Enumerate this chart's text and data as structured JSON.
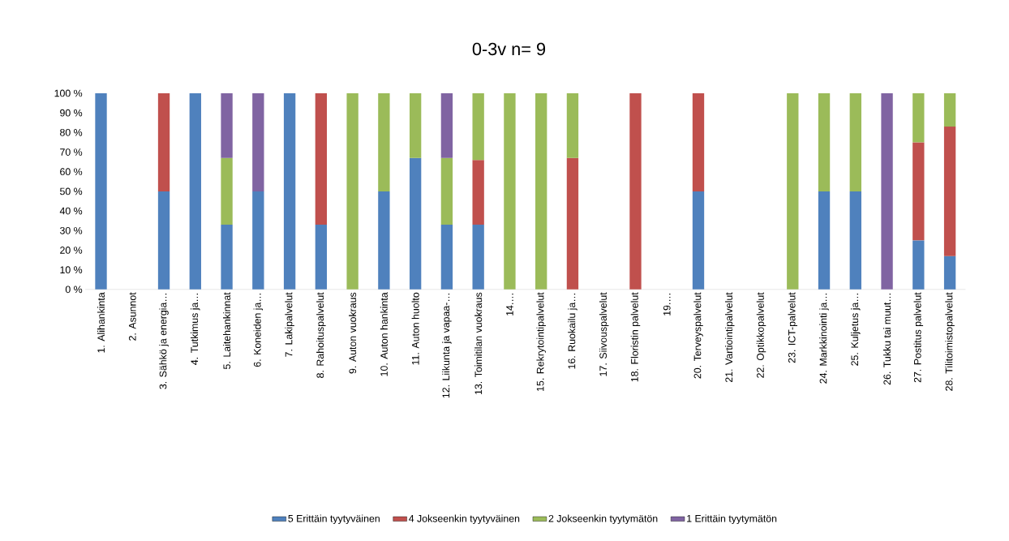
{
  "chart_data": {
    "type": "bar",
    "title": "0-3v n= 9",
    "stacked": true,
    "legend": "bottom",
    "categories": [
      "1. Alihankinta",
      "2. Asunnot",
      "3. Sähkö ja energia…",
      "4. Tutkimus ja…",
      "5. Laitehankinnat",
      "6. Koneiden ja…",
      "7. Lakipalvelut",
      "8. Rahoituspalvelut",
      "9. Auton vuokraus",
      "10. Auton hankinta",
      "11. Auton huolto",
      "12. Liikunta ja vapaa-…",
      "13. Toimitilan vuokraus",
      "14.…",
      "15. Rekrytointipalvelut",
      "16. Ruokailu ja…",
      "17. Siivouspalvelut",
      "18. Floristin palvelut",
      "19.…",
      "20. Terveyspalvelut",
      "21. Vartiointipalvelut",
      "22. Optikkopalvelut",
      "23. ICT-palvelut",
      "24. Markkinointi ja…",
      "25. Kuljetus ja…",
      "26. Tukku tai muut…",
      "27. Postitus palvelut",
      "28. Tilitoimistopalvelut"
    ],
    "ylim": [
      0,
      100
    ],
    "yticks": [
      {
        "value": 0,
        "label": "0 %"
      },
      {
        "value": 10,
        "label": "10 %"
      },
      {
        "value": 20,
        "label": "20 %"
      },
      {
        "value": 30,
        "label": "30 %"
      },
      {
        "value": 40,
        "label": "40 %"
      },
      {
        "value": 50,
        "label": "50 %"
      },
      {
        "value": 60,
        "label": "60 %"
      },
      {
        "value": 70,
        "label": "70 %"
      },
      {
        "value": 80,
        "label": "80 %"
      },
      {
        "value": 90,
        "label": "90 %"
      },
      {
        "value": 100,
        "label": "100 %"
      }
    ],
    "series": [
      {
        "name": "5 Erittäin tyytyväinen",
        "color": "#4f81bd",
        "values": [
          100,
          null,
          50,
          100,
          33,
          50,
          100,
          33,
          null,
          50,
          67,
          33,
          33,
          null,
          null,
          null,
          null,
          null,
          null,
          50,
          null,
          null,
          null,
          50,
          50,
          null,
          25,
          17
        ]
      },
      {
        "name": "4 Jokseenkin tyytyväinen",
        "color": "#c0504d",
        "values": [
          null,
          null,
          50,
          null,
          null,
          null,
          null,
          67,
          null,
          null,
          null,
          null,
          33,
          null,
          null,
          67,
          null,
          100,
          null,
          50,
          null,
          null,
          null,
          null,
          null,
          null,
          50,
          66
        ]
      },
      {
        "name": "2 Jokseenkin tyytymätön",
        "color": "#9bbb59",
        "values": [
          null,
          null,
          null,
          null,
          34,
          null,
          null,
          null,
          100,
          50,
          33,
          34,
          34,
          100,
          100,
          33,
          null,
          null,
          null,
          null,
          null,
          null,
          100,
          50,
          50,
          null,
          25,
          17
        ]
      },
      {
        "name": "1 Erittäin tyytymätön",
        "color": "#8064a2",
        "values": [
          null,
          null,
          null,
          null,
          33,
          50,
          null,
          null,
          null,
          null,
          null,
          33,
          null,
          null,
          null,
          null,
          null,
          null,
          null,
          null,
          null,
          null,
          null,
          null,
          null,
          100,
          null,
          null
        ]
      }
    ]
  }
}
